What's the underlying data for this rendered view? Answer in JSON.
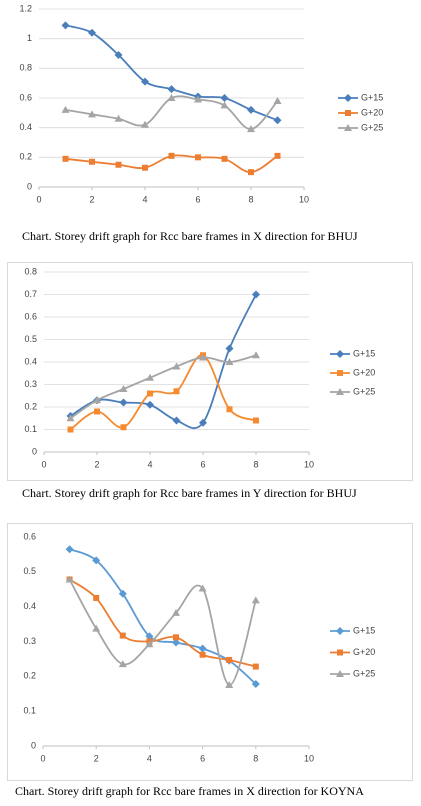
{
  "chart_data": [
    {
      "type": "line",
      "caption": "Chart. Storey drift graph for Rcc bare frames in X direction for BHUJ",
      "x": [
        1,
        2,
        3,
        4,
        5,
        6,
        7,
        8,
        9
      ],
      "series": [
        {
          "name": "G+15",
          "color": "#4a7ebb",
          "values": [
            1.09,
            1.04,
            0.89,
            0.71,
            0.66,
            0.61,
            0.6,
            0.52,
            0.45
          ]
        },
        {
          "name": "G+20",
          "color": "#ed7d31",
          "values": [
            0.19,
            0.17,
            0.15,
            0.13,
            0.21,
            0.2,
            0.19,
            0.1,
            0.21
          ]
        },
        {
          "name": "G+25",
          "color": "#a5a5a5",
          "values": [
            0.52,
            0.49,
            0.46,
            0.42,
            0.6,
            0.59,
            0.55,
            0.39,
            0.58
          ]
        }
      ],
      "xlim": [
        0,
        10
      ],
      "xticks": [
        0,
        2,
        4,
        6,
        8,
        10
      ],
      "ylim": [
        0,
        1.2
      ],
      "yticks": [
        0,
        0.2,
        0.4,
        0.6,
        0.8,
        1,
        1.2
      ],
      "grid": true,
      "legend": "right"
    },
    {
      "type": "line",
      "caption": "Chart. Storey drift graph for Rcc bare frames in Y direction for BHUJ",
      "x": [
        1,
        2,
        3,
        4,
        5,
        6,
        7,
        8
      ],
      "series": [
        {
          "name": "G+15",
          "color": "#4a7ebb",
          "values": [
            0.16,
            0.23,
            0.22,
            0.21,
            0.14,
            0.13,
            0.46,
            0.7
          ]
        },
        {
          "name": "G+20",
          "color": "#f68a2e",
          "values": [
            0.1,
            0.18,
            0.11,
            0.26,
            0.27,
            0.43,
            0.19,
            0.14
          ]
        },
        {
          "name": "G+25",
          "color": "#a5a5a5",
          "values": [
            0.15,
            0.23,
            0.28,
            0.33,
            0.38,
            0.42,
            0.4,
            0.43
          ]
        }
      ],
      "xlim": [
        0,
        10
      ],
      "xticks": [
        0,
        2,
        4,
        6,
        8,
        10
      ],
      "ylim": [
        0,
        0.8
      ],
      "yticks": [
        0,
        0.1,
        0.2,
        0.3,
        0.4,
        0.5,
        0.6,
        0.7,
        0.8
      ],
      "grid": true,
      "legend": "right"
    },
    {
      "type": "line",
      "caption": "Chart. Storey drift graph for Rcc bare frames in X  direction for KOYNA",
      "x": [
        1,
        2,
        3,
        4,
        5,
        6,
        7,
        8
      ],
      "series": [
        {
          "name": "G+15",
          "color": "#5b9bd5",
          "values": [
            0.565,
            0.533,
            0.437,
            0.315,
            0.297,
            0.28,
            0.245,
            0.178
          ]
        },
        {
          "name": "G+20",
          "color": "#ed7d31",
          "values": [
            0.478,
            0.425,
            0.317,
            0.3,
            0.312,
            0.262,
            0.247,
            0.228
          ]
        },
        {
          "name": "G+25",
          "color": "#a5a5a5",
          "values": [
            0.478,
            0.337,
            0.235,
            0.292,
            0.382,
            0.452,
            0.175,
            0.418
          ]
        }
      ],
      "xlim": [
        0,
        10
      ],
      "xticks": [
        0,
        2,
        4,
        6,
        8,
        10
      ],
      "ylim": [
        0,
        0.6
      ],
      "yticks": [
        0,
        0.1,
        0.2,
        0.3,
        0.4,
        0.5,
        0.6
      ],
      "grid": false,
      "legend": "right"
    }
  ]
}
